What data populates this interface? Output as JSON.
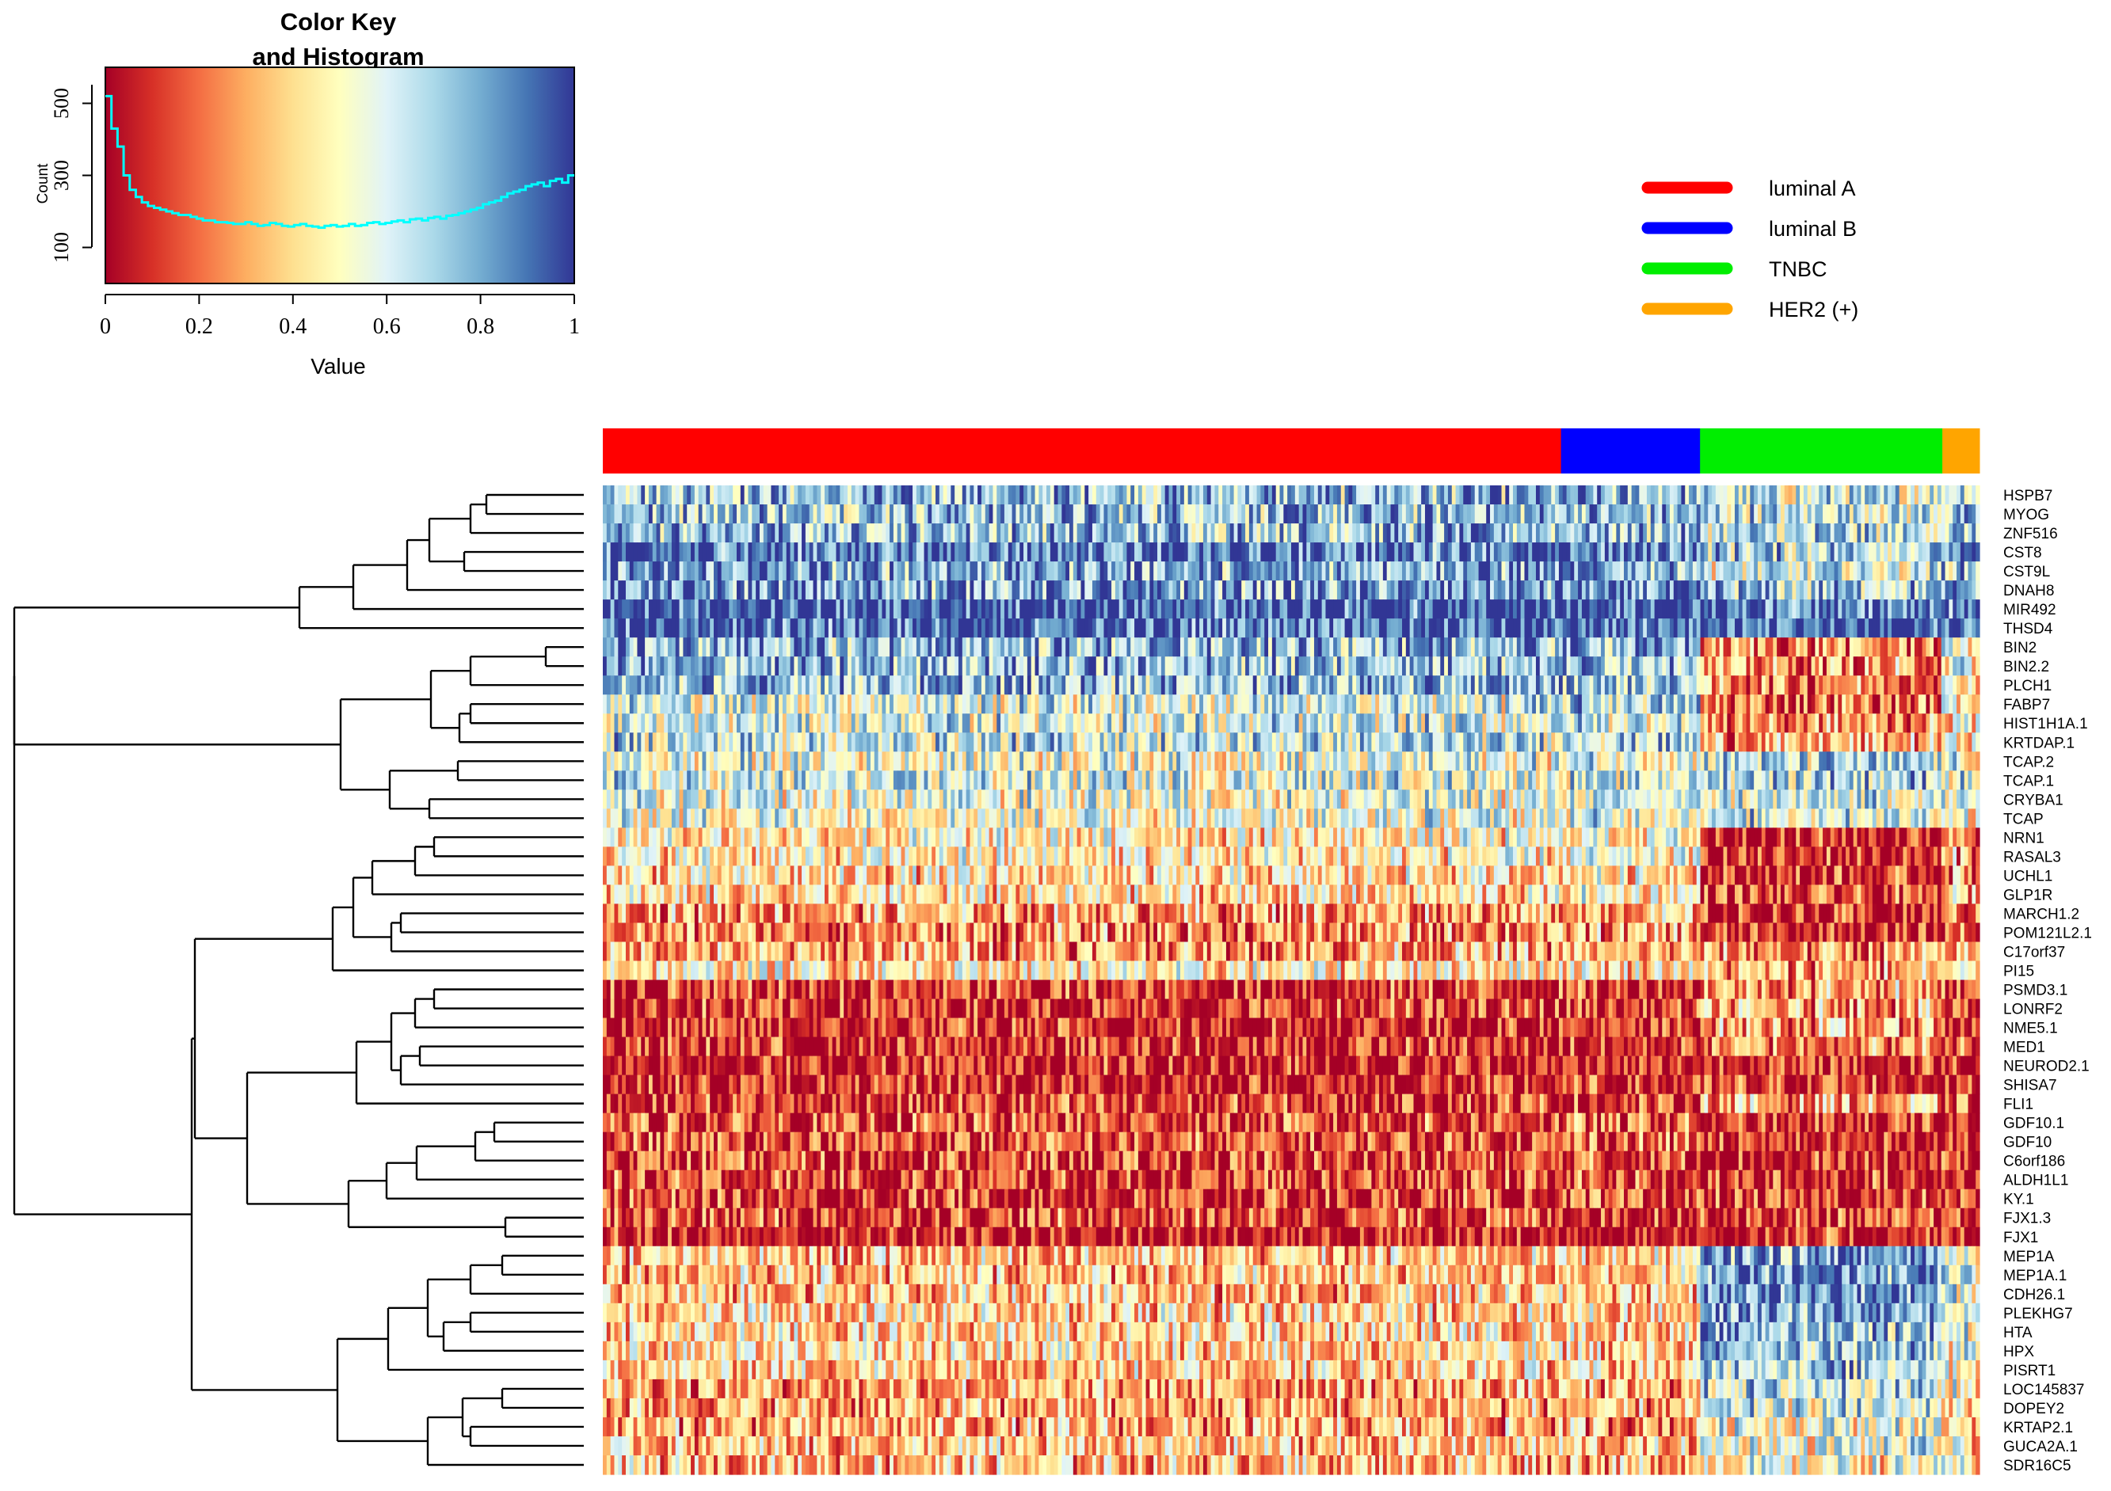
{
  "chart_data": [
    {
      "type": "histogram",
      "title": "Color Key",
      "subtitle": "and Histogram",
      "xlabel": "Value",
      "ylabel": "Count",
      "xlim": [
        0,
        1
      ],
      "ylim": [
        0,
        600
      ],
      "x_ticks": [
        "0",
        "0.2",
        "0.4",
        "0.6",
        "0.8",
        "1"
      ],
      "y_ticks": [
        "100",
        "300",
        "500"
      ],
      "color_scale": [
        "#a50026",
        "#d73027",
        "#f46d43",
        "#fdae61",
        "#fee090",
        "#ffffbf",
        "#e0f3f8",
        "#abd9e9",
        "#74add1",
        "#4575b4",
        "#313695"
      ],
      "histogram_color": "#00ffff",
      "counts": [
        520,
        430,
        380,
        300,
        260,
        240,
        225,
        215,
        210,
        205,
        200,
        195,
        190,
        190,
        185,
        180,
        175,
        175,
        170,
        170,
        168,
        165,
        165,
        170,
        165,
        160,
        162,
        168,
        165,
        160,
        158,
        162,
        165,
        160,
        158,
        155,
        160,
        162,
        158,
        160,
        165,
        160,
        162,
        168,
        170,
        165,
        168,
        172,
        175,
        170,
        178,
        180,
        175,
        182,
        185,
        180,
        188,
        190,
        195,
        200,
        205,
        210,
        220,
        225,
        230,
        240,
        250,
        255,
        260,
        270,
        275,
        280,
        270,
        285,
        290,
        280,
        300
      ]
    },
    {
      "type": "heatmap",
      "legend": [
        {
          "label": "luminal A",
          "color": "#ff0000"
        },
        {
          "label": "luminal B",
          "color": "#0000ff"
        },
        {
          "label": "TNBC",
          "color": "#00ee00"
        },
        {
          "label": "HER2 (+)",
          "color": "#ffa500"
        }
      ],
      "column_groups": [
        {
          "name": "luminal A",
          "color": "#ff0000",
          "fraction": 0.696
        },
        {
          "name": "luminal B",
          "color": "#0000ff",
          "fraction": 0.101
        },
        {
          "name": "TNBC",
          "color": "#00ee00",
          "fraction": 0.176
        },
        {
          "name": "HER2 (+)",
          "color": "#ffa500",
          "fraction": 0.027
        }
      ],
      "genes": [
        "HSPB7",
        "MYOG",
        "ZNF516",
        "CST8",
        "CST9L",
        "DNAH8",
        "MIR492",
        "THSD4",
        "BIN2",
        "BIN2.2",
        "PLCH1",
        "FABP7",
        "HIST1H1A.1",
        "KRTDAP.1",
        "TCAP.2",
        "TCAP.1",
        "CRYBA1",
        "TCAP",
        "NRN1",
        "RASAL3",
        "UCHL1",
        "GLP1R",
        "MARCH1.2",
        "POM121L2.1",
        "C17orf37",
        "PI15",
        "PSMD3.1",
        "LONRF2",
        "NME5.1",
        "MED1",
        "NEUROD2.1",
        "SHISA7",
        "FLI1",
        "GDF10.1",
        "GDF10",
        "C6orf186",
        "ALDH1L1",
        "KY.1",
        "FJX1.3",
        "FJX1",
        "MEP1A",
        "MEP1A.1",
        "CDH26.1",
        "PLEKHG7",
        "HTA",
        "HPX",
        "PISRT1",
        "LOC145837",
        "DOPEY2",
        "KRTAP2.1",
        "GUCA2A.1",
        "SDR16C5"
      ],
      "row_means_by_group": [
        [
          0.75,
          0.75,
          0.6,
          0.7
        ],
        [
          0.75,
          0.75,
          0.65,
          0.7
        ],
        [
          0.75,
          0.75,
          0.65,
          0.7
        ],
        [
          0.9,
          0.88,
          0.7,
          0.85
        ],
        [
          0.8,
          0.8,
          0.6,
          0.75
        ],
        [
          0.8,
          0.8,
          0.7,
          0.8
        ],
        [
          0.95,
          0.93,
          0.9,
          0.92
        ],
        [
          0.92,
          0.93,
          0.95,
          0.93
        ],
        [
          0.75,
          0.78,
          0.25,
          0.55
        ],
        [
          0.75,
          0.78,
          0.25,
          0.55
        ],
        [
          0.75,
          0.75,
          0.25,
          0.5
        ],
        [
          0.6,
          0.7,
          0.2,
          0.5
        ],
        [
          0.6,
          0.65,
          0.25,
          0.5
        ],
        [
          0.65,
          0.7,
          0.3,
          0.5
        ],
        [
          0.55,
          0.6,
          0.65,
          0.55
        ],
        [
          0.6,
          0.62,
          0.7,
          0.6
        ],
        [
          0.55,
          0.58,
          0.6,
          0.55
        ],
        [
          0.55,
          0.6,
          0.62,
          0.55
        ],
        [
          0.45,
          0.5,
          0.08,
          0.3
        ],
        [
          0.45,
          0.5,
          0.08,
          0.3
        ],
        [
          0.4,
          0.45,
          0.08,
          0.3
        ],
        [
          0.4,
          0.5,
          0.1,
          0.35
        ],
        [
          0.3,
          0.35,
          0.05,
          0.2
        ],
        [
          0.25,
          0.3,
          0.05,
          0.2
        ],
        [
          0.3,
          0.3,
          0.25,
          0.3
        ],
        [
          0.45,
          0.45,
          0.3,
          0.4
        ],
        [
          0.1,
          0.12,
          0.3,
          0.15
        ],
        [
          0.1,
          0.12,
          0.3,
          0.15
        ],
        [
          0.08,
          0.1,
          0.3,
          0.15
        ],
        [
          0.08,
          0.1,
          0.25,
          0.15
        ],
        [
          0.06,
          0.08,
          0.1,
          0.1
        ],
        [
          0.06,
          0.08,
          0.1,
          0.1
        ],
        [
          0.12,
          0.12,
          0.3,
          0.15
        ],
        [
          0.15,
          0.2,
          0.05,
          0.1
        ],
        [
          0.15,
          0.2,
          0.05,
          0.1
        ],
        [
          0.12,
          0.15,
          0.05,
          0.1
        ],
        [
          0.12,
          0.15,
          0.08,
          0.1
        ],
        [
          0.1,
          0.12,
          0.08,
          0.1
        ],
        [
          0.15,
          0.15,
          0.1,
          0.1
        ],
        [
          0.05,
          0.06,
          0.06,
          0.06
        ],
        [
          0.35,
          0.4,
          0.82,
          0.6
        ],
        [
          0.35,
          0.4,
          0.82,
          0.6
        ],
        [
          0.35,
          0.4,
          0.85,
          0.6
        ],
        [
          0.4,
          0.4,
          0.78,
          0.6
        ],
        [
          0.4,
          0.4,
          0.75,
          0.6
        ],
        [
          0.4,
          0.4,
          0.7,
          0.55
        ],
        [
          0.4,
          0.4,
          0.72,
          0.55
        ],
        [
          0.3,
          0.3,
          0.65,
          0.5
        ],
        [
          0.3,
          0.3,
          0.6,
          0.45
        ],
        [
          0.3,
          0.3,
          0.55,
          0.45
        ],
        [
          0.35,
          0.35,
          0.55,
          0.45
        ],
        [
          0.35,
          0.35,
          0.5,
          0.45
        ]
      ]
    }
  ]
}
